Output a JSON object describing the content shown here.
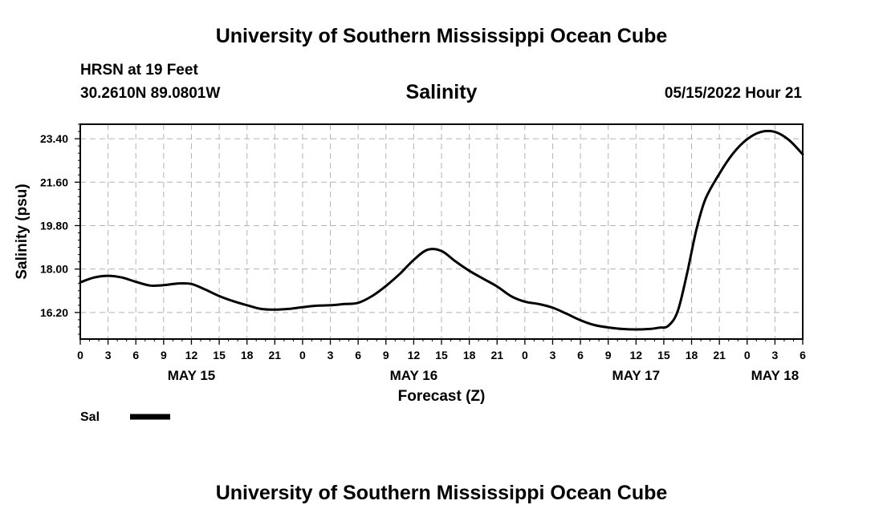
{
  "header": {
    "title_top": "University of Southern Mississippi Ocean Cube",
    "station": "HRSN at 19 Feet",
    "coords": "30.2610N  89.0801W",
    "datetime": "05/15/2022 Hour 21"
  },
  "footer": {
    "title_bottom": "University of Southern Mississippi Ocean Cube"
  },
  "chart_data": {
    "type": "line",
    "title": "Salinity",
    "xlabel": "Forecast (Z)",
    "ylabel": "Salinity (psu)",
    "xlim": [
      0,
      78
    ],
    "ylim": [
      15.1,
      24.0
    ],
    "yticks": [
      16.2,
      18.0,
      19.8,
      21.6,
      23.4
    ],
    "ytick_labels": [
      "16.20",
      "18.00",
      "19.80",
      "21.60",
      "23.40"
    ],
    "xticks": [
      0,
      3,
      6,
      9,
      12,
      15,
      18,
      21,
      24,
      27,
      30,
      33,
      36,
      39,
      42,
      45,
      48,
      51,
      54,
      57,
      60,
      63,
      66,
      69,
      72,
      75,
      78
    ],
    "xtick_labels": [
      "0",
      "3",
      "6",
      "9",
      "12",
      "15",
      "18",
      "21",
      "0",
      "3",
      "6",
      "9",
      "12",
      "15",
      "18",
      "21",
      "0",
      "3",
      "6",
      "9",
      "12",
      "15",
      "18",
      "21",
      "0",
      "3",
      "6"
    ],
    "date_labels": [
      {
        "hour": 12,
        "label": "MAY 15"
      },
      {
        "hour": 36,
        "label": "MAY 16"
      },
      {
        "hour": 60,
        "label": "MAY 17"
      },
      {
        "hour": 75,
        "label": "MAY 18"
      }
    ],
    "grid": true,
    "series": [
      {
        "name": "Sal",
        "color": "#000000",
        "x": [
          0,
          1.5,
          3,
          4.5,
          6,
          7.5,
          9,
          10.5,
          12,
          13.5,
          15,
          16.5,
          18,
          19.5,
          21,
          22.5,
          24,
          25.5,
          27,
          28.5,
          30,
          31.5,
          33,
          34.5,
          36,
          37.5,
          39,
          40.5,
          42,
          43.5,
          45,
          46.5,
          48,
          49.5,
          51,
          52.5,
          54,
          55.5,
          57,
          58.5,
          60,
          61.5,
          62.5,
          63.5,
          64.5,
          65.5,
          66.5,
          67.5,
          69,
          70.5,
          72,
          73.5,
          75,
          76.5,
          78
        ],
        "y": [
          17.45,
          17.65,
          17.72,
          17.65,
          17.47,
          17.32,
          17.33,
          17.4,
          17.38,
          17.15,
          16.88,
          16.67,
          16.5,
          16.35,
          16.32,
          16.35,
          16.42,
          16.48,
          16.5,
          16.55,
          16.6,
          16.88,
          17.3,
          17.8,
          18.38,
          18.8,
          18.75,
          18.32,
          17.93,
          17.6,
          17.28,
          16.88,
          16.65,
          16.55,
          16.4,
          16.15,
          15.88,
          15.68,
          15.58,
          15.52,
          15.5,
          15.52,
          15.57,
          15.65,
          16.25,
          17.8,
          19.6,
          20.9,
          21.95,
          22.8,
          23.38,
          23.68,
          23.68,
          23.35,
          22.75
        ]
      }
    ],
    "legend": {
      "label": "Sal",
      "placement": "bottom-left"
    }
  }
}
